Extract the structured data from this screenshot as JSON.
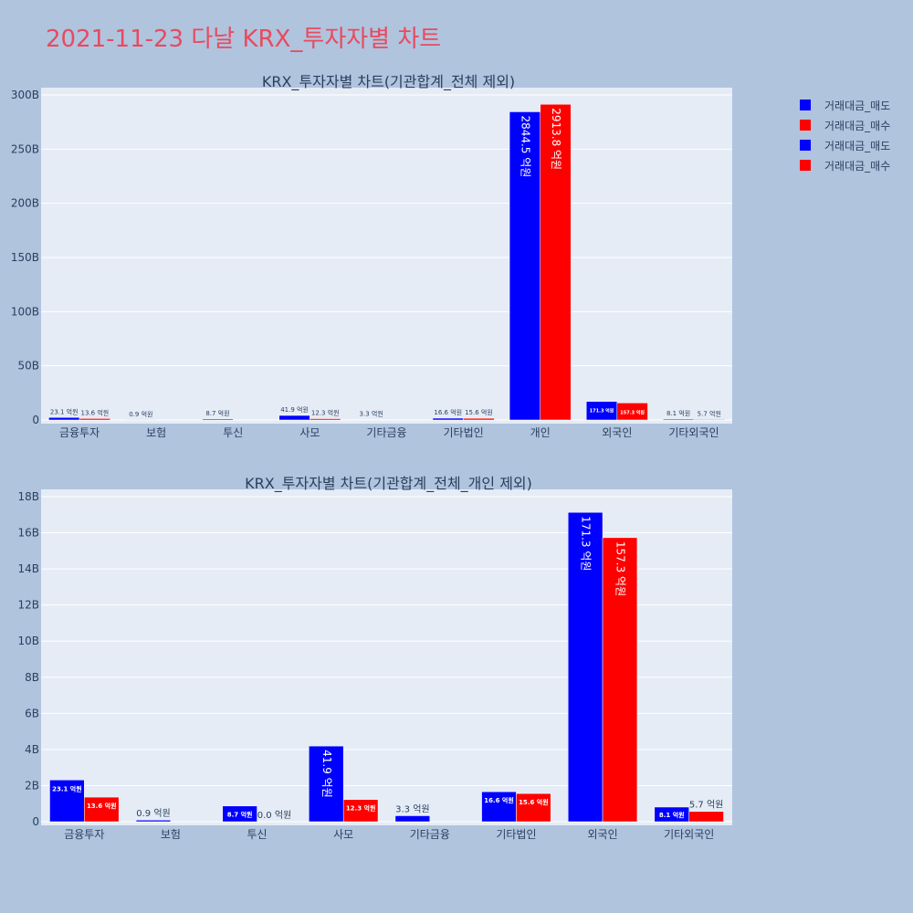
{
  "page_title": "2021-11-23 다날 KRX_투자자별 차트",
  "colors": {
    "sell": "#0000ff",
    "buy": "#ff0000",
    "plot_bg": "#e5ecf6",
    "paper_bg": "#b0c4de",
    "title": "#e84a5f",
    "text": "#2a3f5f"
  },
  "legend": [
    {
      "label": "거래대금_매도",
      "color": "#0000ff"
    },
    {
      "label": "거래대금_매수",
      "color": "#ff0000"
    },
    {
      "label": "거래대금_매도",
      "color": "#0000ff"
    },
    {
      "label": "거래대금_매수",
      "color": "#ff0000"
    }
  ],
  "chart_data": [
    {
      "type": "bar",
      "title": "KRX_투자자별 차트(기관합계_전체 제외)",
      "categories": [
        "금융투자",
        "보험",
        "투신",
        "사모",
        "기타금융",
        "기타법인",
        "개인",
        "외국인",
        "기타외국인"
      ],
      "ylim": [
        0,
        300
      ],
      "yticks": [
        0,
        50,
        100,
        150,
        200,
        250,
        300
      ],
      "ytick_labels": [
        "0",
        "50B",
        "100B",
        "150B",
        "200B",
        "250B",
        "300B"
      ],
      "series": [
        {
          "name": "거래대금_매도",
          "color": "#0000ff",
          "values": [
            2.31,
            0.09,
            0.87,
            4.19,
            0.33,
            1.66,
            284.45,
            17.13,
            0.81
          ],
          "labels": [
            "23.1 억원",
            "0.9 억원",
            "8.7 억원",
            "41.9 억원",
            "3.3 억원",
            "16.6 억원",
            "2844.5 억원",
            "171.3 억원",
            "8.1 억원"
          ]
        },
        {
          "name": "거래대금_매수",
          "color": "#ff0000",
          "values": [
            1.36,
            0,
            0,
            1.23,
            0,
            1.56,
            291.38,
            15.73,
            0.57
          ],
          "labels": [
            "13.6 억원",
            "",
            "",
            "12.3 억원",
            "",
            "15.6 억원",
            "2913.8 억원",
            "157.3 억원",
            "5.7 억원"
          ]
        }
      ]
    },
    {
      "type": "bar",
      "title": "KRX_투자자별 차트(기관합계_전체_개인 제외)",
      "categories": [
        "금융투자",
        "보험",
        "투신",
        "사모",
        "기타금융",
        "기타법인",
        "외국인",
        "기타외국인"
      ],
      "ylim": [
        0,
        18
      ],
      "yticks": [
        0,
        2,
        4,
        6,
        8,
        10,
        12,
        14,
        16,
        18
      ],
      "ytick_labels": [
        "0",
        "2B",
        "4B",
        "6B",
        "8B",
        "10B",
        "12B",
        "14B",
        "16B",
        "18B"
      ],
      "series": [
        {
          "name": "거래대금_매도",
          "color": "#0000ff",
          "values": [
            2.31,
            0.09,
            0.87,
            4.19,
            0.33,
            1.66,
            17.13,
            0.81
          ],
          "labels": [
            "23.1 억원",
            "0.9 억원",
            "8.7 억원",
            "41.9 억원",
            "3.3 억원",
            "16.6 억원",
            "171.3 억원",
            "8.1 억원"
          ]
        },
        {
          "name": "거래대금_매수",
          "color": "#ff0000",
          "values": [
            1.36,
            0,
            0.0,
            1.23,
            0,
            1.56,
            15.73,
            0.57
          ],
          "labels": [
            "13.6 억원",
            "",
            "0.0 억원",
            "12.3 억원",
            "",
            "15.6 억원",
            "157.3 억원",
            "5.7 억원"
          ]
        }
      ]
    }
  ]
}
